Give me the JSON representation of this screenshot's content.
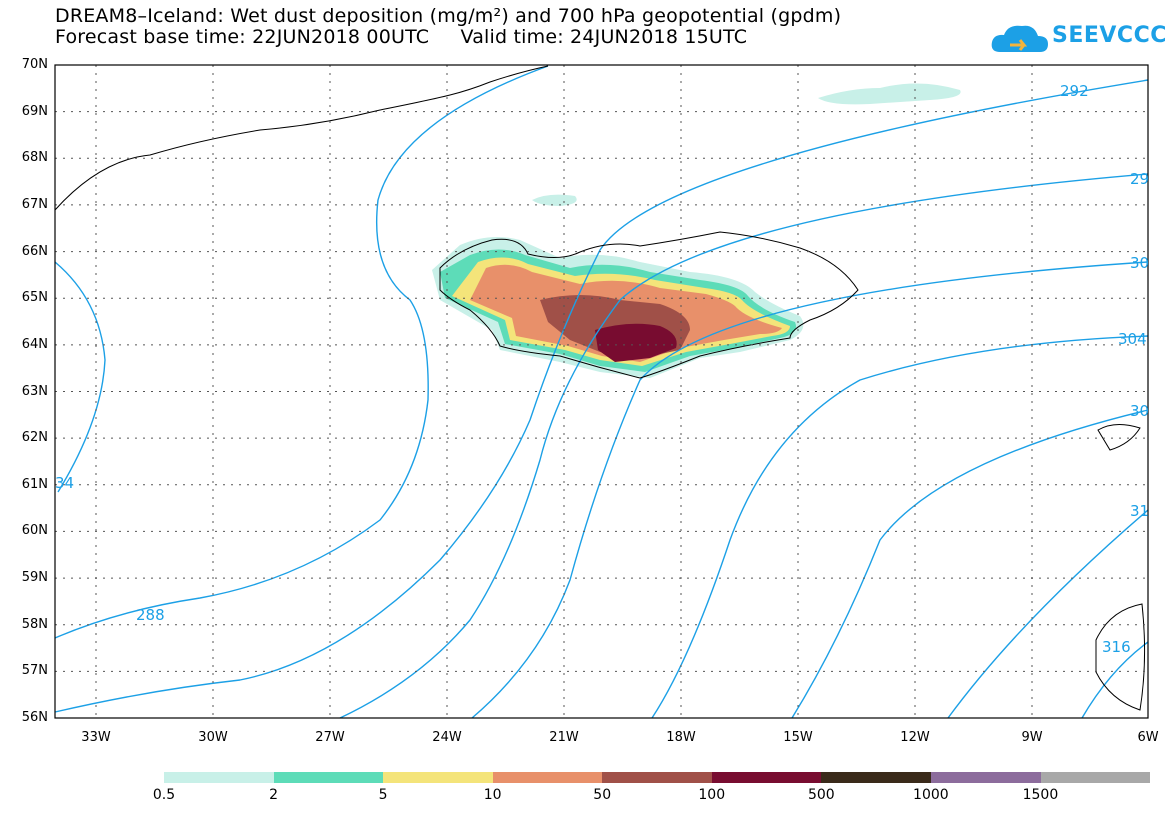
{
  "title": {
    "line1": "DREAM8–Iceland: Wet dust deposition (mg/m²) and 700 hPa geopotential (gpdm)",
    "line2": "Forecast base time: 22JUN2018 00UTC     Valid time: 24JUN2018 15UTC"
  },
  "logo": {
    "text": "SEEVCCC",
    "icon": "cloud-logo-icon",
    "color": "#1ca0e6"
  },
  "latitude_labels": [
    "70N",
    "69N",
    "68N",
    "67N",
    "66N",
    "65N",
    "64N",
    "63N",
    "62N",
    "61N",
    "60N",
    "59N",
    "58N",
    "57N",
    "56N"
  ],
  "longitude_labels": [
    "33W",
    "30W",
    "27W",
    "24W",
    "21W",
    "18W",
    "15W",
    "12W",
    "9W",
    "6W"
  ],
  "contour_labels": [
    "292",
    "29",
    "30",
    "304",
    "30",
    "31",
    "316",
    "288",
    "34"
  ],
  "legend": {
    "labels": [
      "0.5",
      "2",
      "5",
      "10",
      "50",
      "100",
      "500",
      "1000",
      "1500"
    ],
    "colors": [
      "#c8f0e8",
      "#5ddcb8",
      "#f4e47a",
      "#e8906a",
      "#a05048",
      "#780c30",
      "#3a2a1a",
      "#8c6c9c",
      "#a8a8a8"
    ]
  },
  "colors": {
    "contour": "#1ca0e6",
    "coast": "#000000",
    "grid": "#555555"
  }
}
